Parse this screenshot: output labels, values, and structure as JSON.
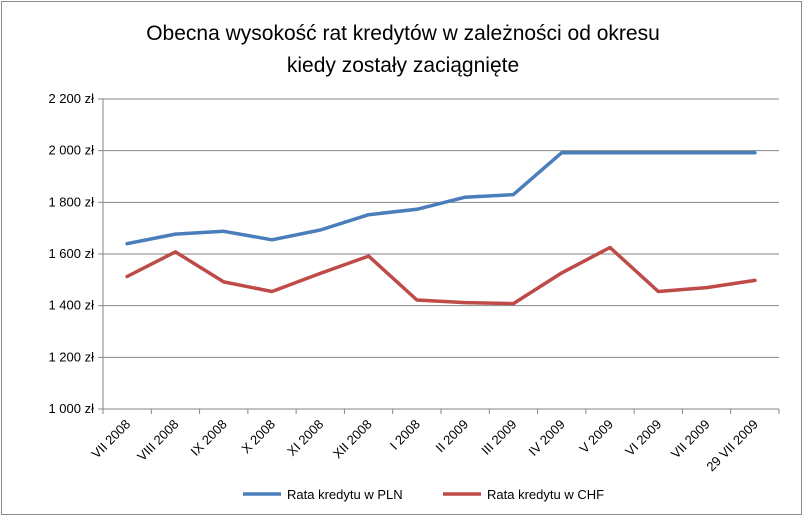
{
  "chart_data": {
    "type": "line",
    "title_lines": [
      "Obecna wysokość rat kredytów w zależności od okresu",
      "kiedy zostały zaciągnięte"
    ],
    "categories": [
      "VII 2008",
      "VIII 2008",
      "IX 2008",
      "X 2008",
      "XI 2008",
      "XII 2008",
      "I 2008",
      "II 2009",
      "III 2009",
      "IV 2009",
      "V 2009",
      "VI 2009",
      "VII 2009",
      "29 VII 2009"
    ],
    "series": [
      {
        "name": "Rata kredytu w PLN",
        "color": "#4a7ebb",
        "values": [
          1640,
          1677,
          1688,
          1655,
          1693,
          1752,
          1773,
          1820,
          1830,
          1992,
          1992,
          1992,
          1992,
          1992
        ]
      },
      {
        "name": "Rata kredytu w CHF",
        "color": "#be4b48",
        "values": [
          1513,
          1608,
          1492,
          1455,
          1525,
          1592,
          1422,
          1412,
          1408,
          1527,
          1625,
          1455,
          1470,
          1498
        ]
      }
    ],
    "yticks": [
      "1 000 zł",
      "1 200 zł",
      "1 400 zł",
      "1 600 zł",
      "1 800 zł",
      "2 000 zł",
      "2 200 zł"
    ],
    "ylim": [
      1000,
      2200
    ],
    "ystep": 200,
    "grid": true,
    "legend_position": "bottom"
  }
}
